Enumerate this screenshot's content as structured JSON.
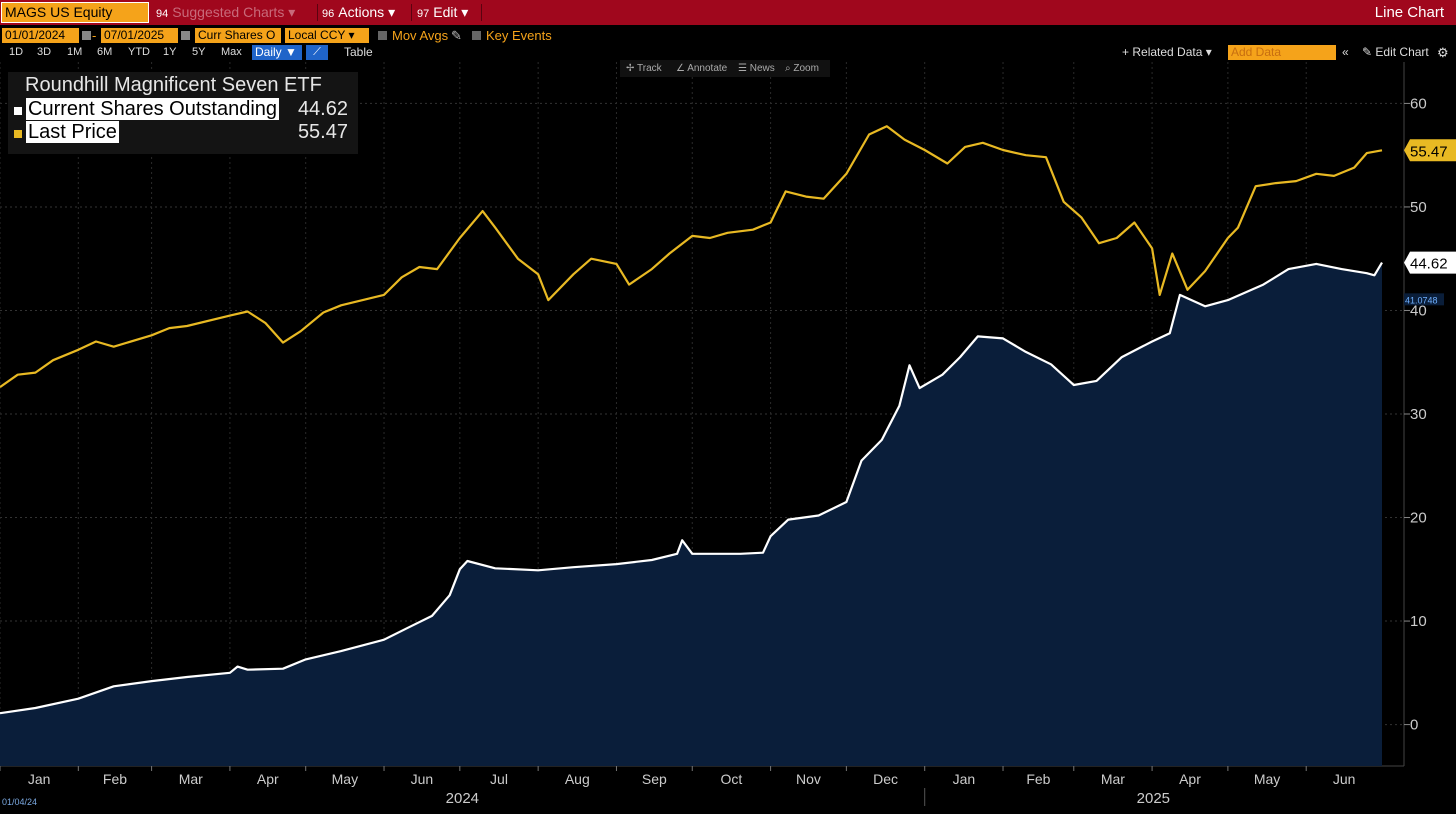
{
  "toolbar": {
    "ticker": "MAGS US Equity",
    "suggested_num": "94",
    "suggested_label": "Suggested Charts",
    "actions_num": "96",
    "actions_label": "Actions",
    "edit_num": "97",
    "edit_label": "Edit",
    "chart_type": "Line Chart",
    "start_date": "01/01/2024",
    "end_date": "07/01/2025",
    "field": "Curr Shares O",
    "currency": "Local CCY",
    "mov_avgs": "Mov Avgs",
    "key_events": "Key Events",
    "ranges": [
      "1D",
      "3D",
      "1M",
      "6M",
      "YTD",
      "1Y",
      "5Y",
      "Max"
    ],
    "period": "Daily",
    "table_label": "Table",
    "related_data": "Related Data",
    "add_data_placeholder": "Add Data",
    "edit_chart": "Edit Chart",
    "chart_tools": [
      "Track",
      "Annotate",
      "News",
      "Zoom"
    ],
    "footer_date": "01/04/24",
    "mid_marker": "41.0748"
  },
  "colors": {
    "toolbar": "#a0071d",
    "accent": "#f5a31a",
    "price": "#e8b923",
    "shares": "#ffffff",
    "area": "#0a1e3a"
  },
  "chart_data": {
    "type": "line",
    "title": "Roundhill Magnificent Seven ETF",
    "x_tick_labels": [
      "Jan",
      "Feb",
      "Mar",
      "Apr",
      "May",
      "Jun",
      "Jul",
      "Aug",
      "Sep",
      "Oct",
      "Nov",
      "Dec",
      "Jan",
      "Feb",
      "Mar",
      "Apr",
      "May",
      "Jun"
    ],
    "year_labels": [
      "2024",
      "2025"
    ],
    "y_ticks": [
      0,
      10,
      20,
      30,
      40,
      50,
      60
    ],
    "ylim": [
      -4,
      64
    ],
    "xlim": [
      "2024-01-01",
      "2025-07-01"
    ],
    "grid": true,
    "legend_position": "top-left",
    "series": [
      {
        "name": "Current Shares Outstanding",
        "last_value": "44.62",
        "last_label": "44.62",
        "fill": true,
        "points": [
          [
            "2024-01-01",
            1.1
          ],
          [
            "2024-01-15",
            1.6
          ],
          [
            "2024-02-01",
            2.5
          ],
          [
            "2024-02-15",
            3.7
          ],
          [
            "2024-03-01",
            4.2
          ],
          [
            "2024-03-15",
            4.6
          ],
          [
            "2024-04-01",
            5.0
          ],
          [
            "2024-04-04",
            5.6
          ],
          [
            "2024-04-08",
            5.3
          ],
          [
            "2024-04-22",
            5.4
          ],
          [
            "2024-05-01",
            6.3
          ],
          [
            "2024-05-15",
            7.1
          ],
          [
            "2024-06-01",
            8.2
          ],
          [
            "2024-06-10",
            9.3
          ],
          [
            "2024-06-20",
            10.5
          ],
          [
            "2024-06-27",
            12.5
          ],
          [
            "2024-07-01",
            15.0
          ],
          [
            "2024-07-04",
            15.8
          ],
          [
            "2024-07-15",
            15.1
          ],
          [
            "2024-08-01",
            14.9
          ],
          [
            "2024-08-15",
            15.2
          ],
          [
            "2024-09-01",
            15.5
          ],
          [
            "2024-09-15",
            15.9
          ],
          [
            "2024-09-25",
            16.5
          ],
          [
            "2024-09-27",
            17.8
          ],
          [
            "2024-10-01",
            16.5
          ],
          [
            "2024-10-20",
            16.5
          ],
          [
            "2024-10-29",
            16.6
          ],
          [
            "2024-11-01",
            18.2
          ],
          [
            "2024-11-08",
            19.8
          ],
          [
            "2024-11-20",
            20.2
          ],
          [
            "2024-12-01",
            21.5
          ],
          [
            "2024-12-07",
            25.5
          ],
          [
            "2024-12-15",
            27.5
          ],
          [
            "2024-12-22",
            30.8
          ],
          [
            "2024-12-26",
            34.7
          ],
          [
            "2024-12-30",
            32.5
          ],
          [
            "2025-01-08",
            33.8
          ],
          [
            "2025-01-15",
            35.5
          ],
          [
            "2025-01-22",
            37.5
          ],
          [
            "2025-02-01",
            37.3
          ],
          [
            "2025-02-10",
            36.0
          ],
          [
            "2025-02-20",
            34.8
          ],
          [
            "2025-03-01",
            32.8
          ],
          [
            "2025-03-10",
            33.2
          ],
          [
            "2025-03-20",
            35.5
          ],
          [
            "2025-04-01",
            37.0
          ],
          [
            "2025-04-08",
            37.8
          ],
          [
            "2025-04-12",
            41.5
          ],
          [
            "2025-04-22",
            40.4
          ],
          [
            "2025-05-01",
            41.0
          ],
          [
            "2025-05-15",
            42.5
          ],
          [
            "2025-05-25",
            44.0
          ],
          [
            "2025-06-05",
            44.5
          ],
          [
            "2025-06-15",
            44.0
          ],
          [
            "2025-06-25",
            43.6
          ],
          [
            "2025-06-28",
            43.4
          ],
          [
            "2025-07-01",
            44.62
          ]
        ]
      },
      {
        "name": "Last Price",
        "last_value": "55.47",
        "last_label": "55.47",
        "fill": false,
        "points": [
          [
            "2024-01-01",
            32.6
          ],
          [
            "2024-01-08",
            33.8
          ],
          [
            "2024-01-15",
            34.0
          ],
          [
            "2024-01-22",
            35.2
          ],
          [
            "2024-02-01",
            36.2
          ],
          [
            "2024-02-08",
            37.0
          ],
          [
            "2024-02-15",
            36.5
          ],
          [
            "2024-03-01",
            37.6
          ],
          [
            "2024-03-08",
            38.3
          ],
          [
            "2024-03-15",
            38.5
          ],
          [
            "2024-04-01",
            39.5
          ],
          [
            "2024-04-08",
            39.9
          ],
          [
            "2024-04-15",
            38.8
          ],
          [
            "2024-04-22",
            36.9
          ],
          [
            "2024-04-29",
            38.0
          ],
          [
            "2024-05-08",
            39.8
          ],
          [
            "2024-05-15",
            40.5
          ],
          [
            "2024-06-01",
            41.5
          ],
          [
            "2024-06-08",
            43.2
          ],
          [
            "2024-06-15",
            44.2
          ],
          [
            "2024-06-22",
            44.0
          ],
          [
            "2024-07-01",
            47.0
          ],
          [
            "2024-07-10",
            49.6
          ],
          [
            "2024-07-15",
            48.0
          ],
          [
            "2024-07-24",
            45.0
          ],
          [
            "2024-08-01",
            43.5
          ],
          [
            "2024-08-05",
            41.0
          ],
          [
            "2024-08-15",
            43.5
          ],
          [
            "2024-08-22",
            45.0
          ],
          [
            "2024-09-01",
            44.5
          ],
          [
            "2024-09-06",
            42.5
          ],
          [
            "2024-09-15",
            44.0
          ],
          [
            "2024-09-22",
            45.5
          ],
          [
            "2024-10-01",
            47.2
          ],
          [
            "2024-10-08",
            47.0
          ],
          [
            "2024-10-15",
            47.5
          ],
          [
            "2024-10-25",
            47.8
          ],
          [
            "2024-11-01",
            48.5
          ],
          [
            "2024-11-07",
            51.5
          ],
          [
            "2024-11-15",
            51.0
          ],
          [
            "2024-11-22",
            50.8
          ],
          [
            "2024-12-01",
            53.2
          ],
          [
            "2024-12-10",
            57.0
          ],
          [
            "2024-12-17",
            57.8
          ],
          [
            "2024-12-24",
            56.5
          ],
          [
            "2025-01-01",
            55.5
          ],
          [
            "2025-01-10",
            54.2
          ],
          [
            "2025-01-17",
            55.8
          ],
          [
            "2025-01-24",
            56.2
          ],
          [
            "2025-02-01",
            55.5
          ],
          [
            "2025-02-10",
            55.0
          ],
          [
            "2025-02-18",
            54.8
          ],
          [
            "2025-02-25",
            50.5
          ],
          [
            "2025-03-04",
            49.0
          ],
          [
            "2025-03-11",
            46.5
          ],
          [
            "2025-03-18",
            47.0
          ],
          [
            "2025-03-25",
            48.5
          ],
          [
            "2025-04-01",
            46.0
          ],
          [
            "2025-04-04",
            41.5
          ],
          [
            "2025-04-09",
            45.5
          ],
          [
            "2025-04-15",
            42.0
          ],
          [
            "2025-04-22",
            43.8
          ],
          [
            "2025-05-01",
            47.0
          ],
          [
            "2025-05-05",
            48.0
          ],
          [
            "2025-05-12",
            52.0
          ],
          [
            "2025-05-20",
            52.3
          ],
          [
            "2025-05-28",
            52.5
          ],
          [
            "2025-06-05",
            53.2
          ],
          [
            "2025-06-12",
            53.0
          ],
          [
            "2025-06-20",
            53.8
          ],
          [
            "2025-06-25",
            55.2
          ],
          [
            "2025-07-01",
            55.47
          ]
        ]
      }
    ]
  }
}
